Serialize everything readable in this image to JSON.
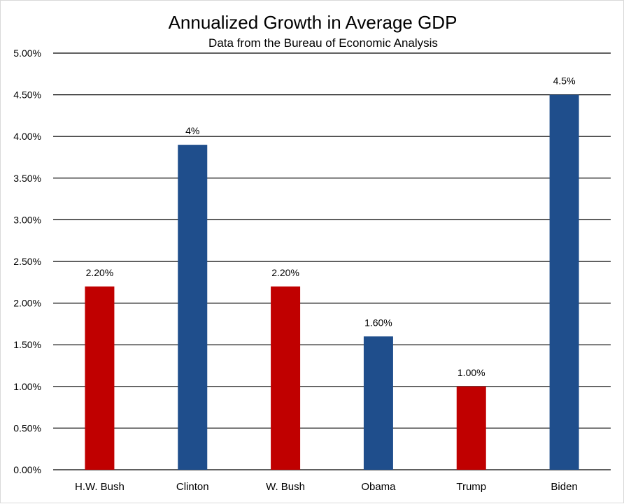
{
  "chart_data": {
    "type": "bar",
    "title": "Annualized Growth in Average GDP",
    "subtitle": "Data from the Bureau of Economic Analysis",
    "xlabel": "",
    "ylabel": "",
    "ylim": [
      0,
      0.05
    ],
    "yticks": [
      "0.00%",
      "0.50%",
      "1.00%",
      "1.50%",
      "2.00%",
      "2.50%",
      "3.00%",
      "3.50%",
      "4.00%",
      "4.50%",
      "5.00%"
    ],
    "categories": [
      "H.W. Bush",
      "Clinton",
      "W. Bush",
      "Obama",
      "Trump",
      "Biden"
    ],
    "values": [
      0.022,
      0.039,
      0.022,
      0.016,
      0.01,
      0.045
    ],
    "data_labels": [
      "2.20%",
      "4%",
      "2.20%",
      "1.60%",
      "1.00%",
      "4.5%"
    ],
    "bar_colors": [
      "#c00000",
      "#1f4e8c",
      "#c00000",
      "#1f4e8c",
      "#c00000",
      "#1f4e8c"
    ],
    "grid": true,
    "legend": "none"
  }
}
